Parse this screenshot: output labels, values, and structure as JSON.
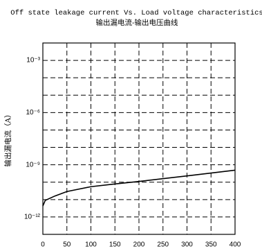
{
  "chart_data": {
    "type": "line",
    "title": "Off state leakage current Vs. Load voltage characteristics",
    "subtitle": "输出漏电流-输出电压曲线",
    "y_label": "输出漏电流（A）",
    "x": [
      0,
      5,
      25,
      50,
      100,
      150,
      200,
      300,
      400
    ],
    "series": [
      {
        "name": "Leakage current",
        "color": "#000000",
        "values": [
          4.3e-12,
          9e-12,
          1.6e-11,
          2.9e-11,
          5.5e-11,
          7.9e-11,
          1.1e-10,
          2.3e-10,
          4.9e-10
        ]
      }
    ],
    "xlim": [
      0,
      400
    ],
    "xticks": [
      0,
      50,
      100,
      150,
      200,
      250,
      300,
      350,
      400
    ],
    "ylim": [
      1e-13,
      0.01
    ],
    "log_y": true,
    "yticks": [
      {
        "value": 0.001,
        "label": "10⁻³"
      },
      {
        "value": 1e-06,
        "label": "10⁻⁶"
      },
      {
        "value": 1e-09,
        "label": "10⁻⁹"
      },
      {
        "value": 1e-12,
        "label": "10⁻¹²"
      }
    ],
    "yminorticks": [
      0.0001,
      1e-05,
      1e-07,
      1e-08,
      1e-10,
      1e-11
    ],
    "grid": true
  }
}
